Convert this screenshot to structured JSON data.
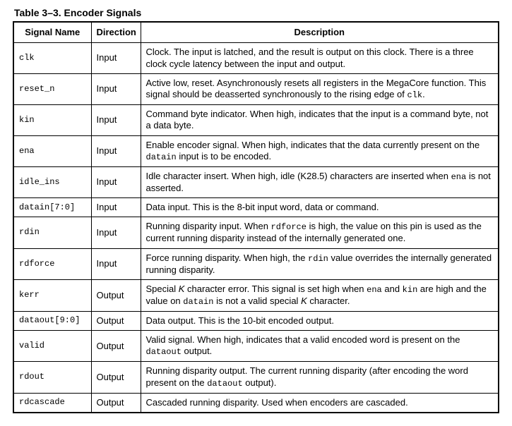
{
  "title": "Table 3–3.   Encoder Signals",
  "headers": {
    "signal": "Signal Name",
    "direction": "Direction",
    "description": "Description"
  },
  "rows": [
    {
      "signal": "clk",
      "direction": "Input",
      "desc_parts": [
        {
          "t": "Clock. The input is latched, and the result is output on this clock. There is a three clock cycle latency between the input and output."
        }
      ]
    },
    {
      "signal": "reset_n",
      "direction": "Input",
      "desc_parts": [
        {
          "t": "Active low, reset. Asynchronously resets all registers in the MegaCore function. This signal should be deasserted synchronously to the rising edge of "
        },
        {
          "t": "clk",
          "mono": true
        },
        {
          "t": "."
        }
      ]
    },
    {
      "signal": "kin",
      "direction": "Input",
      "desc_parts": [
        {
          "t": "Command byte indicator. When high, indicates that the input is a command byte, not a data byte."
        }
      ]
    },
    {
      "signal": "ena",
      "direction": "Input",
      "desc_parts": [
        {
          "t": "Enable encoder signal. When high, indicates that the data currently present on the "
        },
        {
          "t": "datain",
          "mono": true
        },
        {
          "t": " input is to be encoded."
        }
      ]
    },
    {
      "signal": "idle_ins",
      "direction": "Input",
      "desc_parts": [
        {
          "t": "Idle character insert. When high, idle (K28.5) characters are inserted when "
        },
        {
          "t": "ena",
          "mono": true
        },
        {
          "t": " is not asserted."
        }
      ]
    },
    {
      "signal": "datain[7:0]",
      "direction": "Input",
      "desc_parts": [
        {
          "t": "Data input. This is the 8-bit input word, data or command."
        }
      ]
    },
    {
      "signal": "rdin",
      "direction": "Input",
      "desc_parts": [
        {
          "t": "Running disparity input. When "
        },
        {
          "t": "rdforce",
          "mono": true
        },
        {
          "t": " is high, the value on this pin is used as the current running disparity instead of the internally generated one."
        }
      ]
    },
    {
      "signal": "rdforce",
      "direction": "Input",
      "desc_parts": [
        {
          "t": "Force running disparity. When high, the "
        },
        {
          "t": "rdin",
          "mono": true
        },
        {
          "t": " value overrides the internally generated running disparity."
        }
      ]
    },
    {
      "signal": "kerr",
      "direction": "Output",
      "desc_parts": [
        {
          "t": "Special "
        },
        {
          "t": "K",
          "ital": true
        },
        {
          "t": " character error. This signal is set high when "
        },
        {
          "t": "ena",
          "mono": true
        },
        {
          "t": " and "
        },
        {
          "t": "kin",
          "mono": true
        },
        {
          "t": " are high and the value on "
        },
        {
          "t": "datain",
          "mono": true
        },
        {
          "t": " is not a valid special "
        },
        {
          "t": "K",
          "ital": true
        },
        {
          "t": " character."
        }
      ]
    },
    {
      "signal": "dataout[9:0]",
      "direction": "Output",
      "desc_parts": [
        {
          "t": "Data output. This is the 10-bit encoded output."
        }
      ]
    },
    {
      "signal": "valid",
      "direction": "Output",
      "desc_parts": [
        {
          "t": "Valid signal. When high, indicates that a valid encoded word is present on the "
        },
        {
          "t": "dataout",
          "mono": true
        },
        {
          "t": " output."
        }
      ]
    },
    {
      "signal": "rdout",
      "direction": "Output",
      "desc_parts": [
        {
          "t": "Running disparity output. The current running disparity (after encoding the word present on the "
        },
        {
          "t": "dataout",
          "mono": true
        },
        {
          "t": " output)."
        }
      ]
    },
    {
      "signal": "rdcascade",
      "direction": "Output",
      "desc_parts": [
        {
          "t": "Cascaded running disparity. Used when encoders are cascaded."
        }
      ]
    }
  ]
}
